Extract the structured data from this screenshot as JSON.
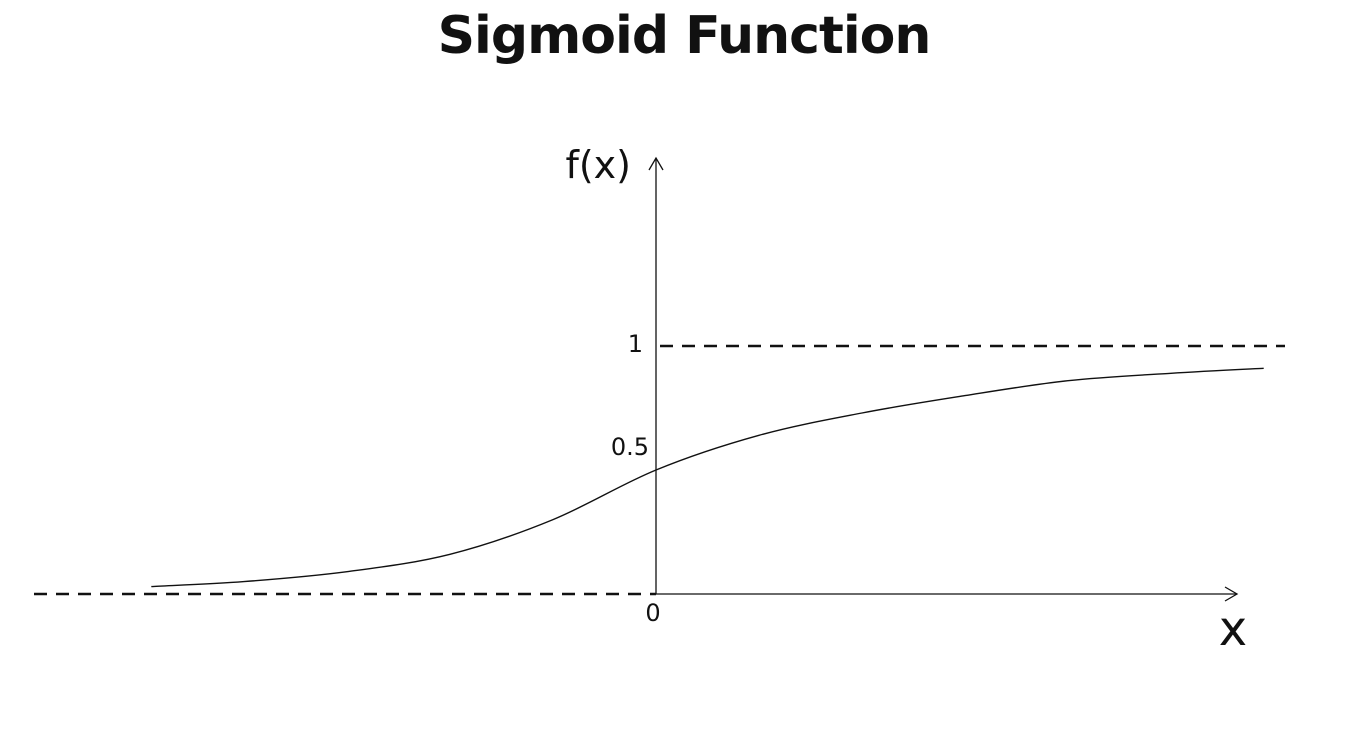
{
  "chart_data": {
    "type": "line",
    "title": "Sigmoid Function",
    "xlabel": "x",
    "ylabel": "f(x)",
    "xlim": [
      -6,
      6
    ],
    "ylim": [
      0,
      1
    ],
    "yticks": [
      {
        "value": 0,
        "label": "0"
      },
      {
        "value": 0.5,
        "label": "0.5"
      },
      {
        "value": 1,
        "label": "1"
      }
    ],
    "asymptotes": [
      0,
      1
    ],
    "grid": false,
    "series": [
      {
        "x": [
          -4.9,
          -4.0,
          -3.0,
          -2.0,
          -1.0,
          0,
          1.0,
          2.0,
          3.0,
          4.0,
          5.0,
          5.9
        ],
        "y": [
          0.03,
          0.05,
          0.09,
          0.16,
          0.3,
          0.5,
          0.64,
          0.73,
          0.8,
          0.86,
          0.89,
          0.91
        ]
      }
    ]
  }
}
